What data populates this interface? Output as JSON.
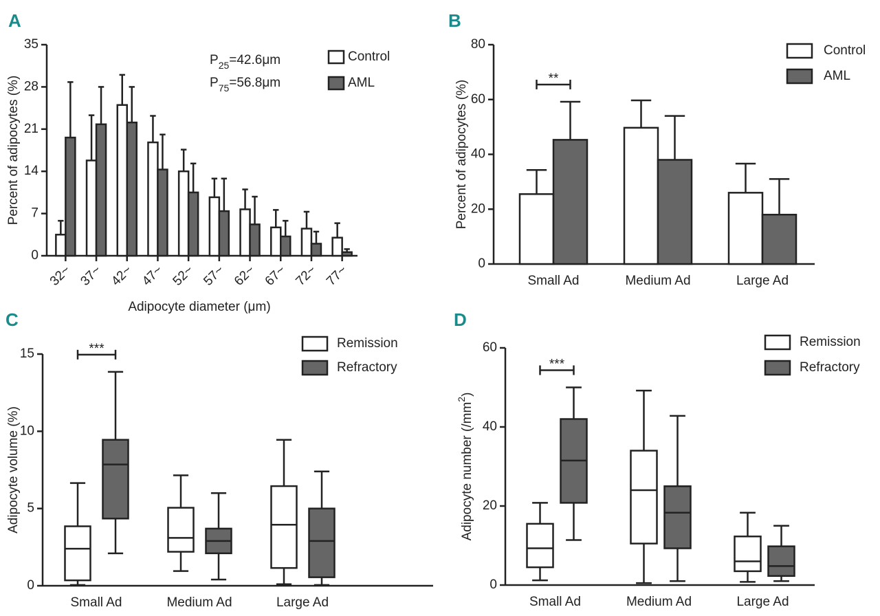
{
  "chart_data": [
    {
      "type": "bar",
      "panel": "A",
      "ylabel": "Percent of adipocytes (%)",
      "xlabel": "Adipocyte diameter (μm)",
      "categories": [
        "32~",
        "37~",
        "42~",
        "47~",
        "52~",
        "57~",
        "62~",
        "67~",
        "72~",
        "77~"
      ],
      "ylim": [
        0,
        35
      ],
      "yticks": [
        0,
        7,
        14,
        21,
        28,
        35
      ],
      "annotations": [
        [
          "P",
          "25",
          "=42.6μm"
        ],
        [
          "P",
          "75",
          "=56.8μm"
        ]
      ],
      "series": [
        {
          "name": "Control",
          "color": "#ffffff",
          "values": [
            3.5,
            15.8,
            25,
            18.8,
            14,
            9.7,
            7.7,
            4.7,
            4.5,
            3
          ],
          "errors": [
            2.3,
            7.5,
            5,
            4.4,
            3.6,
            3.1,
            3.3,
            2.9,
            2.8,
            2.4
          ]
        },
        {
          "name": "AML",
          "color": "#666666",
          "values": [
            19.6,
            21.8,
            22.1,
            14.3,
            10.5,
            7.4,
            5.2,
            3.2,
            2,
            0.6
          ],
          "errors": [
            9.2,
            6.2,
            5.9,
            5.8,
            4.8,
            5.4,
            4.6,
            2.6,
            2,
            0.5
          ]
        }
      ]
    },
    {
      "type": "bar",
      "panel": "B",
      "ylabel": "Percent of adipocytes (%)",
      "categories": [
        "Small Ad",
        "Medium Ad",
        "Large Ad"
      ],
      "ylim": [
        0,
        80
      ],
      "yticks": [
        0,
        20,
        40,
        60,
        80
      ],
      "significance": "**",
      "series": [
        {
          "name": "Control",
          "color": "#ffffff",
          "values": [
            25.5,
            49.7,
            26
          ],
          "errors": [
            8.8,
            10,
            10.6
          ]
        },
        {
          "name": "AML",
          "color": "#666666",
          "values": [
            45.3,
            38,
            18
          ],
          "errors": [
            13.9,
            16,
            13
          ]
        }
      ]
    },
    {
      "type": "box",
      "panel": "C",
      "ylabel": "Adipocyte volume (%)",
      "categories": [
        "Small Ad",
        "Medium Ad",
        "Large Ad"
      ],
      "ylim": [
        0,
        15
      ],
      "yticks": [
        0,
        5,
        10,
        15
      ],
      "significance": "***",
      "series": [
        {
          "name": "Remission",
          "color": "#ffffff",
          "values": [
            {
              "min": 0.05,
              "q1": 0.35,
              "median": 2.4,
              "q3": 3.85,
              "max": 6.65
            },
            {
              "min": 0.95,
              "q1": 2.2,
              "median": 3.1,
              "q3": 5.05,
              "max": 7.15
            },
            {
              "min": 0.1,
              "q1": 1.15,
              "median": 3.95,
              "q3": 6.45,
              "max": 9.45
            }
          ]
        },
        {
          "name": "Refractory",
          "color": "#666666",
          "values": [
            {
              "min": 2.1,
              "q1": 4.35,
              "median": 7.85,
              "q3": 9.45,
              "max": 13.85
            },
            {
              "min": 0.4,
              "q1": 2.1,
              "median": 2.9,
              "q3": 3.7,
              "max": 6.0
            },
            {
              "min": 0.05,
              "q1": 0.55,
              "median": 2.9,
              "q3": 5.0,
              "max": 7.4
            }
          ]
        }
      ]
    },
    {
      "type": "box",
      "panel": "D",
      "ylabel": [
        "Adipocyte number (/mm",
        "2",
        ")"
      ],
      "categories": [
        "Small Ad",
        "Medium Ad",
        "Large Ad"
      ],
      "ylim": [
        0,
        60
      ],
      "yticks": [
        0,
        20,
        40,
        60
      ],
      "significance": "***",
      "series": [
        {
          "name": "Remission",
          "color": "#ffffff",
          "values": [
            {
              "min": 1.2,
              "q1": 4.5,
              "median": 9.3,
              "q3": 15.5,
              "max": 20.8
            },
            {
              "min": 0.5,
              "q1": 10.5,
              "median": 24,
              "q3": 34,
              "max": 49.2
            },
            {
              "min": 0.8,
              "q1": 3.5,
              "median": 6,
              "q3": 12.3,
              "max": 18.3
            }
          ]
        },
        {
          "name": "Refractory",
          "color": "#666666",
          "values": [
            {
              "min": 11.4,
              "q1": 20.8,
              "median": 31.5,
              "q3": 42,
              "max": 50
            },
            {
              "min": 1,
              "q1": 9.3,
              "median": 18.3,
              "q3": 25,
              "max": 42.8
            },
            {
              "min": 1,
              "q1": 2.3,
              "median": 4.8,
              "q3": 9.8,
              "max": 15
            }
          ]
        }
      ]
    }
  ]
}
